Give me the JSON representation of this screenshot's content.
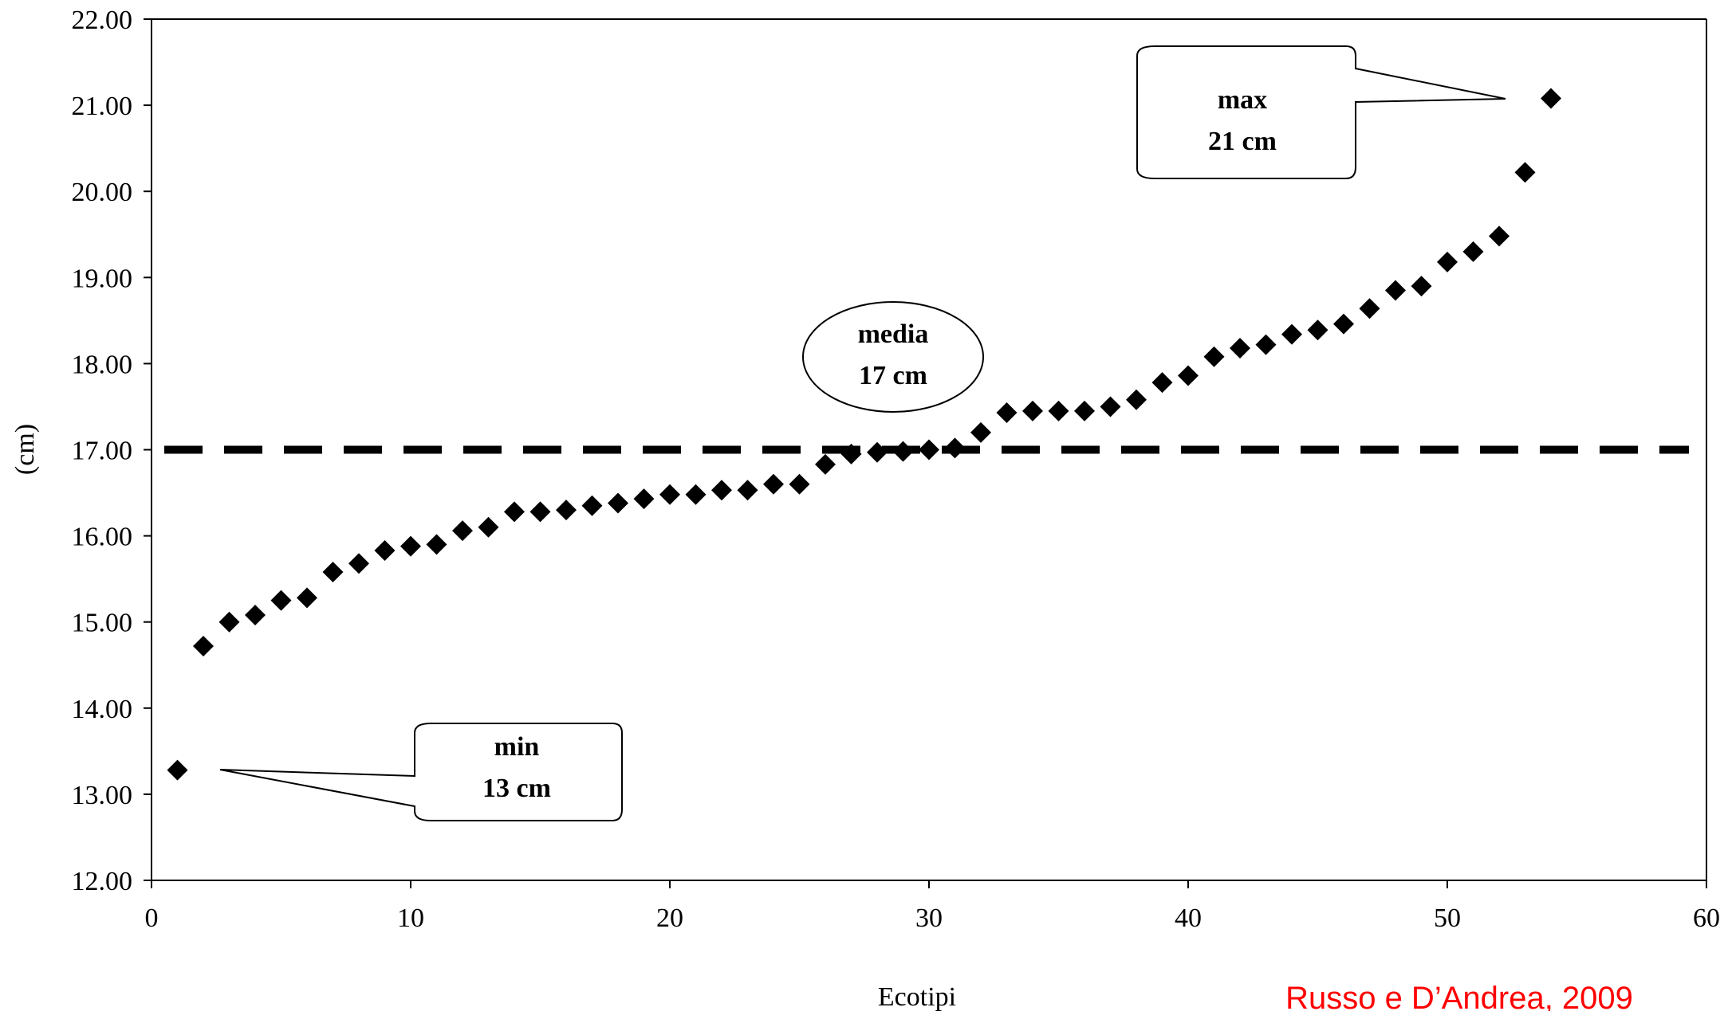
{
  "chart_data": {
    "type": "scatter",
    "xlabel": "Ecotipi",
    "ylabel": "(cm)",
    "xlim": [
      0,
      60
    ],
    "ylim": [
      12,
      22
    ],
    "x_ticks": [
      "0",
      "10",
      "20",
      "30",
      "40",
      "50",
      "60"
    ],
    "y_ticks": [
      "12.00",
      "13.00",
      "14.00",
      "15.00",
      "16.00",
      "17.00",
      "18.00",
      "19.00",
      "20.00",
      "21.00",
      "22.00"
    ],
    "grid": false,
    "marker": "diamond",
    "marker_color": "#000000",
    "points": [
      {
        "x": 1,
        "y": 13.28
      },
      {
        "x": 2,
        "y": 14.72
      },
      {
        "x": 3,
        "y": 15.0
      },
      {
        "x": 4,
        "y": 15.08
      },
      {
        "x": 5,
        "y": 15.25
      },
      {
        "x": 6,
        "y": 15.28
      },
      {
        "x": 7,
        "y": 15.58
      },
      {
        "x": 8,
        "y": 15.68
      },
      {
        "x": 9,
        "y": 15.83
      },
      {
        "x": 10,
        "y": 15.88
      },
      {
        "x": 11,
        "y": 15.9
      },
      {
        "x": 12,
        "y": 16.06
      },
      {
        "x": 13,
        "y": 16.1
      },
      {
        "x": 14,
        "y": 16.28
      },
      {
        "x": 15,
        "y": 16.28
      },
      {
        "x": 16,
        "y": 16.3
      },
      {
        "x": 17,
        "y": 16.35
      },
      {
        "x": 18,
        "y": 16.38
      },
      {
        "x": 19,
        "y": 16.43
      },
      {
        "x": 20,
        "y": 16.48
      },
      {
        "x": 21,
        "y": 16.48
      },
      {
        "x": 22,
        "y": 16.53
      },
      {
        "x": 23,
        "y": 16.53
      },
      {
        "x": 24,
        "y": 16.6
      },
      {
        "x": 25,
        "y": 16.6
      },
      {
        "x": 26,
        "y": 16.83
      },
      {
        "x": 27,
        "y": 16.95
      },
      {
        "x": 28,
        "y": 16.97
      },
      {
        "x": 29,
        "y": 16.98
      },
      {
        "x": 30,
        "y": 17.0
      },
      {
        "x": 31,
        "y": 17.02
      },
      {
        "x": 32,
        "y": 17.2
      },
      {
        "x": 33,
        "y": 17.43
      },
      {
        "x": 34,
        "y": 17.45
      },
      {
        "x": 35,
        "y": 17.45
      },
      {
        "x": 36,
        "y": 17.45
      },
      {
        "x": 37,
        "y": 17.5
      },
      {
        "x": 38,
        "y": 17.58
      },
      {
        "x": 39,
        "y": 17.78
      },
      {
        "x": 40,
        "y": 17.86
      },
      {
        "x": 41,
        "y": 18.08
      },
      {
        "x": 42,
        "y": 18.18
      },
      {
        "x": 43,
        "y": 18.22
      },
      {
        "x": 44,
        "y": 18.34
      },
      {
        "x": 45,
        "y": 18.39
      },
      {
        "x": 46,
        "y": 18.46
      },
      {
        "x": 47,
        "y": 18.64
      },
      {
        "x": 48,
        "y": 18.85
      },
      {
        "x": 49,
        "y": 18.9
      },
      {
        "x": 50,
        "y": 19.18
      },
      {
        "x": 51,
        "y": 19.3
      },
      {
        "x": 52,
        "y": 19.48
      },
      {
        "x": 53,
        "y": 20.22
      },
      {
        "x": 54,
        "y": 21.08
      }
    ],
    "reference_line": {
      "y": 17.0,
      "style": "dashed",
      "color": "#000000"
    },
    "annotations": [
      {
        "id": "max",
        "lines": [
          "max",
          "21 cm"
        ],
        "shape": "rounded-callout",
        "target": {
          "x": 54,
          "y": 21.08
        }
      },
      {
        "id": "media",
        "lines": [
          "media",
          "17 cm"
        ],
        "shape": "ellipse"
      },
      {
        "id": "min",
        "lines": [
          "min",
          "13 cm"
        ],
        "shape": "rounded-callout",
        "target": {
          "x": 1,
          "y": 13.28
        }
      }
    ],
    "source": "Russo e D’Andrea, 2009",
    "source_color": "#ff0000"
  }
}
